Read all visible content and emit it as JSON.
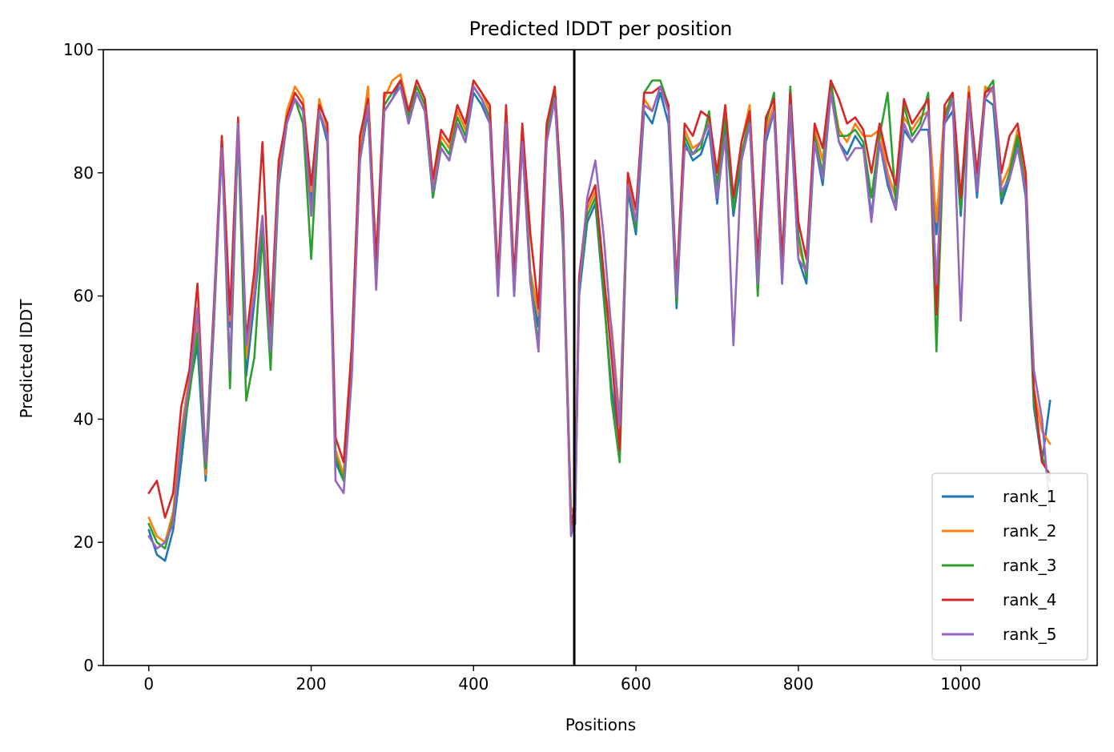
{
  "chart_data": {
    "type": "line",
    "title": "Predicted lDDT per position",
    "xlabel": "Positions",
    "ylabel": "Predicted lDDT",
    "xlim": [
      -56,
      1168
    ],
    "ylim": [
      0,
      100
    ],
    "xticks": [
      "0",
      "200",
      "400",
      "600",
      "800",
      "1000"
    ],
    "yticks": [
      "0",
      "20",
      "40",
      "60",
      "80",
      "100"
    ],
    "vline_x": 524,
    "legend_position": "lower-right",
    "x": [
      0,
      10,
      20,
      30,
      40,
      50,
      60,
      70,
      80,
      90,
      100,
      110,
      120,
      130,
      140,
      150,
      160,
      170,
      180,
      190,
      200,
      210,
      220,
      230,
      240,
      250,
      260,
      270,
      280,
      290,
      300,
      310,
      320,
      330,
      340,
      350,
      360,
      370,
      380,
      390,
      400,
      410,
      420,
      430,
      440,
      450,
      460,
      470,
      480,
      490,
      500,
      510,
      520,
      525,
      530,
      540,
      550,
      560,
      570,
      580,
      590,
      600,
      610,
      620,
      630,
      640,
      650,
      660,
      670,
      680,
      690,
      700,
      710,
      720,
      730,
      740,
      750,
      760,
      770,
      780,
      790,
      800,
      810,
      820,
      830,
      840,
      850,
      860,
      870,
      880,
      890,
      900,
      910,
      920,
      930,
      940,
      950,
      960,
      970,
      980,
      990,
      1000,
      1010,
      1020,
      1030,
      1040,
      1050,
      1060,
      1070,
      1080,
      1090,
      1100,
      1110
    ],
    "series": [
      {
        "name": "rank_1",
        "color": "#1f77b4",
        "values": [
          22,
          18,
          17,
          22,
          33,
          45,
          52,
          30,
          55,
          84,
          55,
          87,
          47,
          59,
          72,
          50,
          78,
          88,
          92,
          90,
          75,
          90,
          85,
          33,
          30,
          48,
          82,
          90,
          63,
          90,
          92,
          95,
          88,
          93,
          90,
          76,
          84,
          82,
          88,
          85,
          93,
          91,
          88,
          60,
          88,
          60,
          85,
          62,
          55,
          85,
          92,
          70,
          22,
          23,
          60,
          72,
          75,
          60,
          45,
          36,
          77,
          70,
          90,
          88,
          93,
          88,
          58,
          85,
          82,
          83,
          87,
          75,
          88,
          73,
          82,
          88,
          62,
          85,
          90,
          62,
          90,
          66,
          62,
          85,
          78,
          93,
          85,
          83,
          86,
          84,
          73,
          85,
          78,
          74,
          87,
          85,
          87,
          87,
          70,
          88,
          90,
          73,
          92,
          76,
          92,
          91,
          75,
          79,
          85,
          76,
          42,
          33,
          43
        ]
      },
      {
        "name": "rank_2",
        "color": "#ff7f0e",
        "values": [
          24,
          21,
          20,
          25,
          38,
          47,
          56,
          31,
          56,
          86,
          56,
          88,
          50,
          61,
          73,
          52,
          80,
          90,
          94,
          92,
          77,
          92,
          87,
          35,
          31,
          50,
          84,
          94,
          65,
          92,
          95,
          96,
          90,
          95,
          92,
          78,
          86,
          84,
          90,
          87,
          95,
          93,
          90,
          62,
          90,
          62,
          87,
          64,
          57,
          87,
          94,
          72,
          25,
          26,
          62,
          74,
          77,
          62,
          55,
          40,
          79,
          72,
          92,
          90,
          94,
          90,
          60,
          87,
          84,
          85,
          89,
          77,
          90,
          75,
          85,
          91,
          65,
          87,
          91,
          64,
          92,
          68,
          64,
          87,
          82,
          94,
          87,
          85,
          88,
          86,
          86,
          87,
          80,
          76,
          89,
          87,
          89,
          90,
          72,
          90,
          92,
          75,
          94,
          78,
          94,
          93,
          78,
          81,
          87,
          78,
          45,
          38,
          36
        ]
      },
      {
        "name": "rank_3",
        "color": "#2ca02c",
        "values": [
          23,
          20,
          19,
          24,
          36,
          44,
          54,
          32,
          55,
          85,
          45,
          87,
          43,
          50,
          70,
          48,
          78,
          88,
          92,
          88,
          66,
          90,
          86,
          34,
          30,
          49,
          82,
          92,
          62,
          91,
          93,
          95,
          89,
          94,
          91,
          76,
          85,
          83,
          89,
          86,
          94,
          92,
          89,
          61,
          89,
          61,
          86,
          63,
          52,
          86,
          93,
          68,
          23,
          25,
          61,
          73,
          76,
          61,
          43,
          33,
          78,
          71,
          93,
          95,
          95,
          91,
          59,
          86,
          83,
          84,
          90,
          78,
          89,
          74,
          83,
          89,
          60,
          88,
          93,
          63,
          94,
          70,
          63,
          86,
          80,
          95,
          86,
          86,
          87,
          85,
          76,
          86,
          93,
          75,
          91,
          86,
          88,
          93,
          51,
          89,
          93,
          74,
          93,
          77,
          93,
          95,
          76,
          80,
          86,
          77,
          43,
          34,
          30
        ]
      },
      {
        "name": "rank_4",
        "color": "#d62728",
        "values": [
          28,
          30,
          24,
          28,
          42,
          48,
          62,
          33,
          58,
          86,
          57,
          89,
          53,
          64,
          85,
          55,
          82,
          89,
          93,
          91,
          78,
          91,
          88,
          37,
          33,
          52,
          86,
          92,
          66,
          93,
          93,
          95,
          90,
          95,
          92,
          79,
          87,
          85,
          91,
          88,
          95,
          93,
          91,
          63,
          91,
          63,
          88,
          70,
          58,
          88,
          94,
          73,
          22,
          27,
          63,
          75,
          78,
          64,
          50,
          35,
          80,
          74,
          93,
          93,
          94,
          91,
          62,
          88,
          86,
          90,
          89,
          80,
          91,
          76,
          85,
          90,
          66,
          89,
          92,
          66,
          93,
          72,
          66,
          88,
          84,
          95,
          92,
          88,
          89,
          87,
          80,
          88,
          82,
          78,
          92,
          88,
          90,
          92,
          57,
          91,
          93,
          76,
          93,
          80,
          93,
          94,
          80,
          86,
          88,
          80,
          45,
          33,
          31
        ]
      },
      {
        "name": "rank_5",
        "color": "#9467bd",
        "values": [
          21,
          19,
          20,
          23,
          37,
          46,
          58,
          33,
          56,
          84,
          48,
          88,
          52,
          60,
          73,
          51,
          79,
          88,
          92,
          90,
          73,
          90,
          86,
          30,
          28,
          47,
          82,
          91,
          61,
          90,
          92,
          94,
          88,
          93,
          90,
          77,
          84,
          82,
          88,
          85,
          94,
          92,
          88,
          60,
          88,
          60,
          85,
          62,
          51,
          85,
          92,
          70,
          21,
          24,
          61,
          76,
          82,
          70,
          54,
          39,
          78,
          72,
          91,
          90,
          94,
          90,
          60,
          84,
          83,
          85,
          88,
          76,
          86,
          52,
          82,
          88,
          62,
          86,
          90,
          62,
          91,
          66,
          64,
          85,
          79,
          93,
          85,
          82,
          84,
          84,
          72,
          85,
          79,
          74,
          88,
          85,
          87,
          90,
          62,
          88,
          92,
          56,
          92,
          77,
          92,
          94,
          77,
          79,
          84,
          77,
          48,
          40,
          25
        ]
      }
    ]
  }
}
